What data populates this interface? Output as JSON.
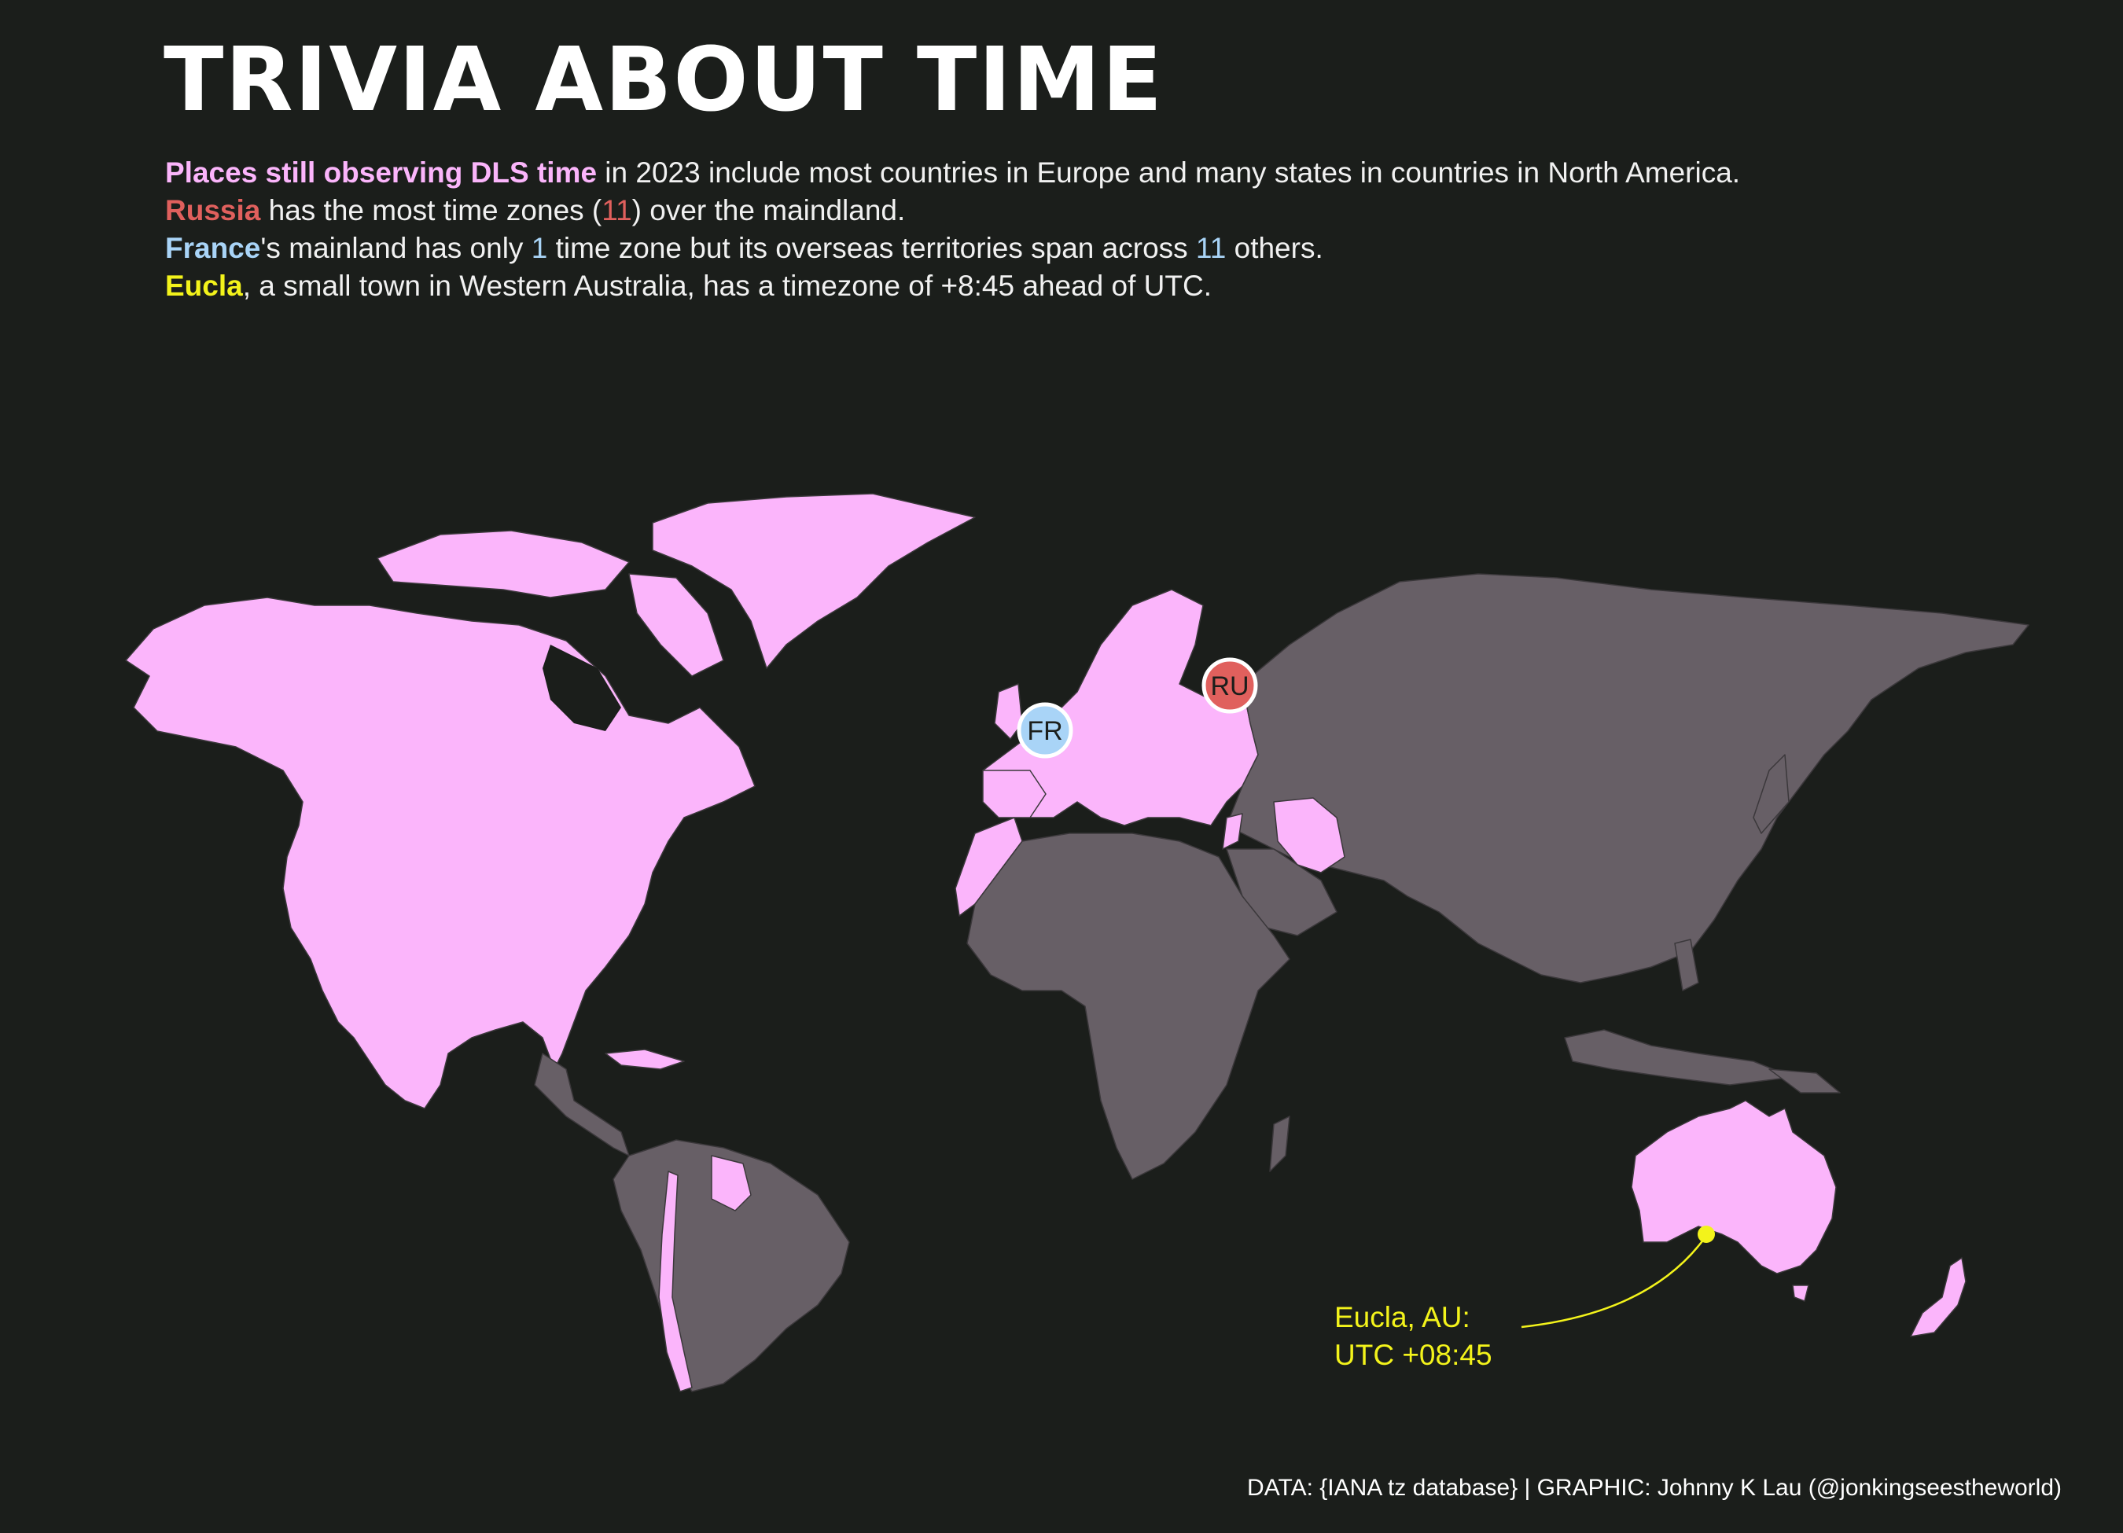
{
  "title": "TRIVIA ABOUT TIME",
  "subtitle": {
    "line1": {
      "highlight": "Places still observing DLS time",
      "rest": " in 2023 include most countries in Europe and many states in countries in North America."
    },
    "line2": {
      "highlight": "Russia",
      "pre_num": " has the most time zones (",
      "num": "11",
      "post_num": ") over the maindland."
    },
    "line3": {
      "highlight": "France",
      "part1": "'s mainland has only ",
      "num1": "1",
      "part2": " time zone but its overseas territories span across ",
      "num2": "11",
      "part3": " others."
    },
    "line4": {
      "highlight": "Eucla",
      "rest": ", a small town in Western Australia, has a timezone of +8:45 ahead of UTC."
    }
  },
  "markers": {
    "russia": "RU",
    "france": "FR"
  },
  "annotation": {
    "line1": "Eucla, AU:",
    "line2": "UTC +08:45"
  },
  "caption": "DATA: {IANA tz database} | GRAPHIC: Johnny K Lau (@jonkingseestheworld)",
  "colors": {
    "background": "#1b1e1b",
    "dst": "#fbb5fb",
    "no_dst": "#675f66",
    "russia": "#e0605d",
    "france": "#a9d4f7",
    "eucla": "#f3f31b"
  }
}
